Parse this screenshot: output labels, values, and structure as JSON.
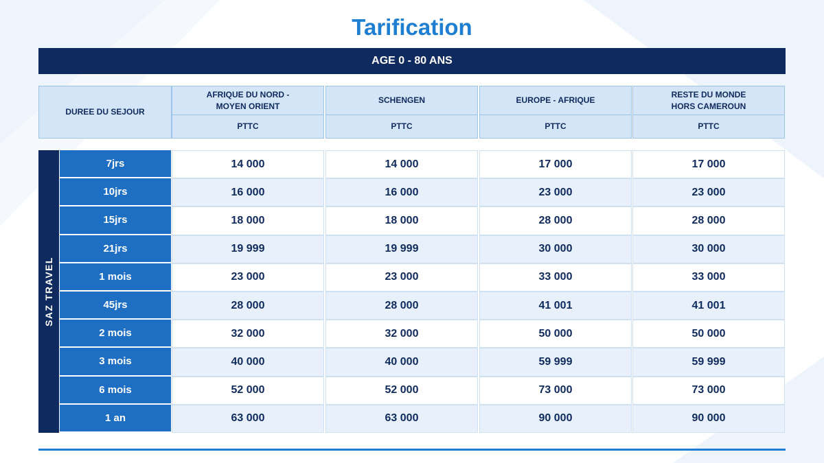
{
  "title": "Tarification",
  "banner": "AGE 0 - 80 ANS",
  "header": {
    "duration_label": "DUREE DU SEJOUR",
    "columns": [
      {
        "name": "AFRIQUE DU NORD - MOYEN ORIENT",
        "unit": "PTTC"
      },
      {
        "name": "SCHENGEN",
        "unit": "PTTC"
      },
      {
        "name": "EUROPE - AFRIQUE",
        "unit": "PTTC"
      },
      {
        "name": "RESTE DU MONDE HORS CAMEROUN",
        "unit": "PTTC"
      }
    ]
  },
  "side_label": "SAZ TRAVEL",
  "rows": [
    {
      "duration": "7jrs",
      "values": [
        "14 000",
        "14 000",
        "17 000",
        "17 000"
      ]
    },
    {
      "duration": "10jrs",
      "values": [
        "16 000",
        "16 000",
        "23 000",
        "23 000"
      ]
    },
    {
      "duration": "15jrs",
      "values": [
        "18 000",
        "18 000",
        "28 000",
        "28 000"
      ]
    },
    {
      "duration": "21jrs",
      "values": [
        "19 999",
        "19 999",
        "30 000",
        "30 000"
      ]
    },
    {
      "duration": "1 mois",
      "values": [
        "23 000",
        "23 000",
        "33 000",
        "33 000"
      ]
    },
    {
      "duration": "45jrs",
      "values": [
        "28 000",
        "28 000",
        "41 001",
        "41 001"
      ]
    },
    {
      "duration": "2 mois",
      "values": [
        "32 000",
        "32 000",
        "50 000",
        "50 000"
      ]
    },
    {
      "duration": "3 mois",
      "values": [
        "40 000",
        "40 000",
        "59 999",
        "59 999"
      ]
    },
    {
      "duration": "6 mois",
      "values": [
        "52 000",
        "52 000",
        "73 000",
        "73 000"
      ]
    },
    {
      "duration": "1 an",
      "values": [
        "63 000",
        "63 000",
        "90 000",
        "90 000"
      ]
    }
  ]
}
